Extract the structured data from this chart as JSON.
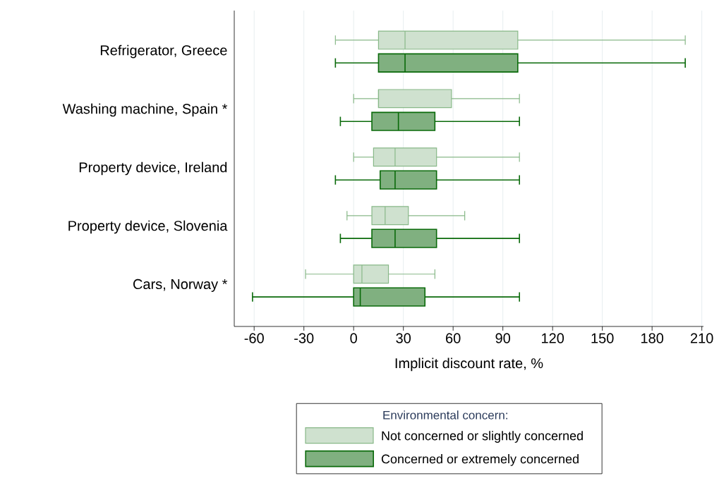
{
  "chart_data": {
    "type": "box",
    "orientation": "horizontal",
    "xlabel": "Implicit discount rate, %",
    "legend_title": "Environmental concern:",
    "legend": "bottom",
    "grid": "x",
    "categories": [
      "Refrigerator, Greece",
      "Washing machine, Spain *",
      "Property device, Ireland",
      "Property device, Slovenia",
      "Cars, Norway *"
    ],
    "xlim": [
      -72,
      211
    ],
    "xticks": [
      -60,
      -30,
      0,
      30,
      60,
      90,
      120,
      150,
      180,
      210
    ],
    "series": [
      {
        "name": "Not concerned or slightly concerned",
        "color": "#cfe1cf",
        "boxes": [
          {
            "low": -11,
            "q1": 15,
            "median": 31,
            "q3": 99,
            "high": 200
          },
          {
            "low": 0,
            "q1": 15,
            "median": 15,
            "q3": 59,
            "high": 100
          },
          {
            "low": 0,
            "q1": 12,
            "median": 25,
            "q3": 50,
            "high": 100
          },
          {
            "low": -4,
            "q1": 11,
            "median": 19,
            "q3": 33,
            "high": 67
          },
          {
            "low": -29,
            "q1": 0,
            "median": 5,
            "q3": 21,
            "high": 49
          }
        ]
      },
      {
        "name": "Concerned or extremely concerned",
        "color": "#80b080",
        "boxes": [
          {
            "low": -11,
            "q1": 15,
            "median": 31,
            "q3": 99,
            "high": 200
          },
          {
            "low": -8,
            "q1": 11,
            "median": 27,
            "q3": 49,
            "high": 100
          },
          {
            "low": -11,
            "q1": 16,
            "median": 25,
            "q3": 50,
            "high": 100
          },
          {
            "low": -8,
            "q1": 11,
            "median": 25,
            "q3": 50,
            "high": 100
          },
          {
            "low": -61,
            "q1": 0,
            "median": 4,
            "q3": 43,
            "high": 100
          }
        ]
      }
    ]
  }
}
